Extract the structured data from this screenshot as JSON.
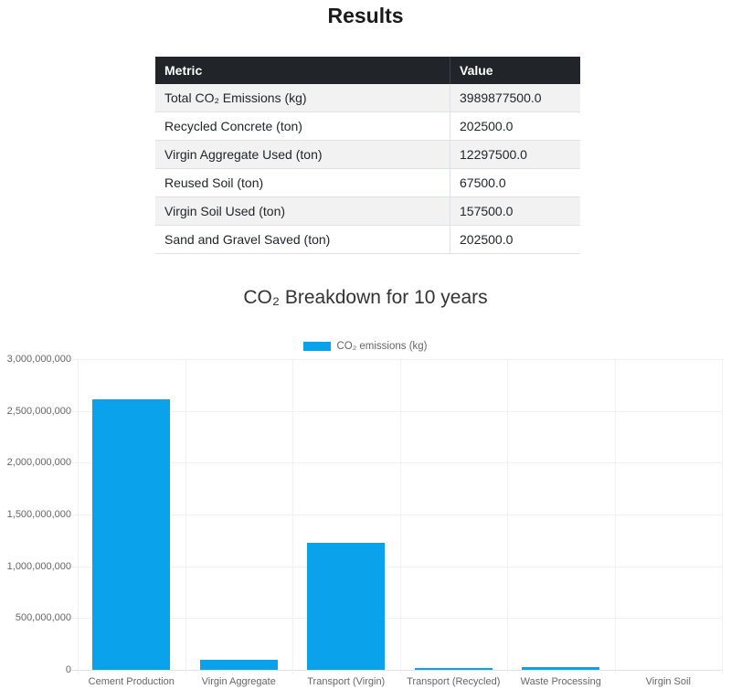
{
  "page": {
    "title": "Results"
  },
  "table": {
    "headers": [
      "Metric",
      "Value"
    ],
    "rows": [
      [
        "Total CO₂ Emissions (kg)",
        "3989877500.0"
      ],
      [
        "Recycled Concrete (ton)",
        "202500.0"
      ],
      [
        "Virgin Aggregate Used (ton)",
        "12297500.0"
      ],
      [
        "Reused Soil (ton)",
        "67500.0"
      ],
      [
        "Virgin Soil Used (ton)",
        "157500.0"
      ],
      [
        "Sand and Gravel Saved (ton)",
        "202500.0"
      ]
    ]
  },
  "chart": {
    "title": "CO₂ Breakdown for 10 years",
    "legend_label": "CO₂ emissions (kg)"
  },
  "chart_data": {
    "type": "bar",
    "title": "CO₂ Breakdown for 10 years",
    "categories": [
      "Cement Production",
      "Virgin Aggregate",
      "Transport (Virgin)",
      "Transport (Recycled)",
      "Waste Processing",
      "Virgin Soil"
    ],
    "values": [
      2610000000,
      100000000,
      1230000000,
      20000000,
      30000000,
      0
    ],
    "series_name": "CO₂ emissions (kg)",
    "xlabel": "",
    "ylabel": "",
    "ylim": [
      0,
      3000000000
    ],
    "ytick_step": 500000000,
    "grid": true,
    "legend_position": "top",
    "bar_color": "#0aa2eb"
  },
  "colors": {
    "bar": "#0aa2eb",
    "table_header_bg": "#212529",
    "stripe_bg": "#f2f2f2",
    "grid_line": "#f1f1f1",
    "tick_text": "#666666"
  }
}
